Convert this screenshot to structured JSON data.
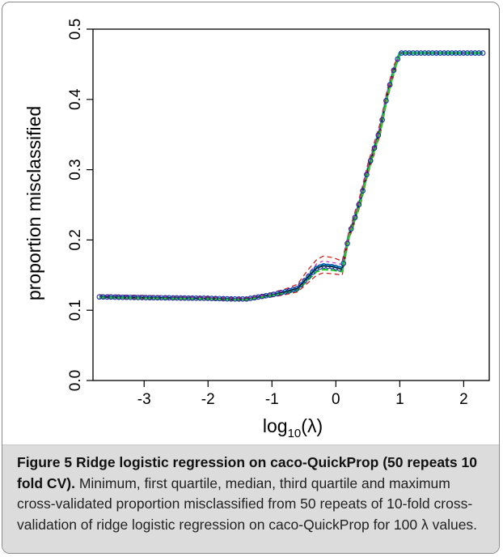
{
  "chart_data": {
    "type": "line",
    "title": "",
    "xlabel_base": "log",
    "xlabel_sub": "10",
    "xlabel_arg": "(λ)",
    "ylabel": "proportion misclassified",
    "xlim": [
      -3.8,
      2.4
    ],
    "ylim": [
      0.0,
      0.5
    ],
    "xticks": [
      -3,
      -2,
      -1,
      0,
      1,
      2
    ],
    "xtick_labels": [
      "-3",
      "-2",
      "-1",
      "0",
      "1",
      "2"
    ],
    "yticks": [
      0.0,
      0.1,
      0.2,
      0.3,
      0.4,
      0.5
    ],
    "ytick_labels": [
      "0.0",
      "0.1",
      "0.2",
      "0.3",
      "0.4",
      "0.5"
    ],
    "grid": false,
    "legend": false,
    "marker_color": "#1a2fa0",
    "series": [
      {
        "color": "#00c8c8",
        "dash": "",
        "width": 3.5,
        "x": [
          -3.7,
          -3.0,
          -2.0,
          -1.6,
          -1.4,
          -1.2,
          -1.0,
          -0.8,
          -0.6,
          -0.45,
          -0.3,
          -0.2,
          -0.05,
          0.1,
          0.2,
          0.3,
          0.4,
          0.5,
          0.6,
          0.7,
          0.8,
          0.9,
          1.0,
          1.5,
          2.3
        ],
        "y": [
          0.119,
          0.118,
          0.117,
          0.116,
          0.116,
          0.119,
          0.122,
          0.126,
          0.131,
          0.146,
          0.161,
          0.165,
          0.163,
          0.16,
          0.205,
          0.232,
          0.262,
          0.3,
          0.33,
          0.36,
          0.405,
          0.44,
          0.466,
          0.466,
          0.466
        ]
      },
      {
        "color": "#111111",
        "dash": "",
        "width": 1.6,
        "x": [
          -3.7,
          -3.0,
          -2.0,
          -1.6,
          -1.4,
          -1.2,
          -1.0,
          -0.8,
          -0.6,
          -0.45,
          -0.3,
          -0.2,
          -0.05,
          0.1,
          0.2,
          0.3,
          0.4,
          0.5,
          0.6,
          0.7,
          0.8,
          0.9,
          1.0,
          1.5,
          2.3
        ],
        "y": [
          0.119,
          0.118,
          0.117,
          0.116,
          0.116,
          0.119,
          0.122,
          0.126,
          0.131,
          0.146,
          0.16,
          0.163,
          0.162,
          0.158,
          0.205,
          0.232,
          0.262,
          0.3,
          0.33,
          0.36,
          0.405,
          0.44,
          0.466,
          0.466,
          0.466
        ]
      },
      {
        "color": "#cc2222",
        "dash": "6,4",
        "width": 1.3,
        "x": [
          -3.7,
          -3.0,
          -2.0,
          -1.6,
          -1.4,
          -1.2,
          -1.0,
          -0.8,
          -0.6,
          -0.45,
          -0.3,
          -0.2,
          -0.05,
          0.1,
          0.2,
          0.3,
          0.4,
          0.5,
          0.6,
          0.7,
          0.8,
          0.9,
          1.0,
          1.5,
          2.3
        ],
        "y": [
          0.122,
          0.121,
          0.119,
          0.118,
          0.118,
          0.121,
          0.125,
          0.13,
          0.137,
          0.156,
          0.172,
          0.177,
          0.175,
          0.17,
          0.21,
          0.24,
          0.27,
          0.308,
          0.338,
          0.368,
          0.412,
          0.447,
          0.466,
          0.466,
          0.466
        ]
      },
      {
        "color": "#cc2222",
        "dash": "6,4",
        "width": 1.3,
        "x": [
          -3.7,
          -3.0,
          -2.0,
          -1.6,
          -1.4,
          -1.2,
          -1.0,
          -0.8,
          -0.6,
          -0.45,
          -0.3,
          -0.2,
          -0.05,
          0.1,
          0.2,
          0.3,
          0.4,
          0.5,
          0.6,
          0.7,
          0.8,
          0.9,
          1.0,
          1.5,
          2.3
        ],
        "y": [
          0.117,
          0.116,
          0.115,
          0.114,
          0.114,
          0.117,
          0.119,
          0.122,
          0.126,
          0.138,
          0.15,
          0.153,
          0.152,
          0.15,
          0.2,
          0.226,
          0.255,
          0.293,
          0.322,
          0.352,
          0.398,
          0.433,
          0.466,
          0.466,
          0.466
        ]
      },
      {
        "color": "#cc33cc",
        "dash": "4,4",
        "width": 1.3,
        "x": [
          -3.7,
          -3.0,
          -2.0,
          -1.6,
          -1.4,
          -1.2,
          -1.0,
          -0.8,
          -0.6,
          -0.45,
          -0.3,
          -0.2,
          -0.05,
          0.1,
          0.2,
          0.3,
          0.4,
          0.5,
          0.6,
          0.7,
          0.8,
          0.9,
          1.0,
          1.5,
          2.3
        ],
        "y": [
          0.121,
          0.12,
          0.118,
          0.117,
          0.117,
          0.12,
          0.123,
          0.128,
          0.134,
          0.15,
          0.166,
          0.17,
          0.168,
          0.165,
          0.207,
          0.236,
          0.266,
          0.304,
          0.334,
          0.364,
          0.408,
          0.443,
          0.466,
          0.466,
          0.466
        ]
      },
      {
        "color": "#22cc22",
        "dash": "8,3",
        "width": 2.2,
        "x": [
          -3.7,
          -3.0,
          -2.0,
          -1.6,
          -1.4,
          -1.2,
          -1.0,
          -0.8,
          -0.6,
          -0.45,
          -0.3,
          -0.2,
          -0.05,
          0.1,
          0.2,
          0.3,
          0.4,
          0.5,
          0.6,
          0.7,
          0.8,
          0.9,
          1.0,
          1.5,
          2.3
        ],
        "y": [
          0.118,
          0.117,
          0.116,
          0.115,
          0.115,
          0.118,
          0.121,
          0.124,
          0.128,
          0.142,
          0.155,
          0.158,
          0.157,
          0.155,
          0.203,
          0.229,
          0.259,
          0.296,
          0.326,
          0.356,
          0.401,
          0.437,
          0.466,
          0.466,
          0.466
        ]
      }
    ]
  },
  "caption": {
    "label": "Figure 5",
    "title": "Ridge logistic regression on caco-QuickProp (50 repeats 10 fold CV).",
    "body": "Minimum, first quartile, median, third quartile and maximum cross-validated proportion misclassified from 50 repeats of 10-fold cross-validation of ridge logistic regression on caco-QuickProp for 100 λ values."
  }
}
